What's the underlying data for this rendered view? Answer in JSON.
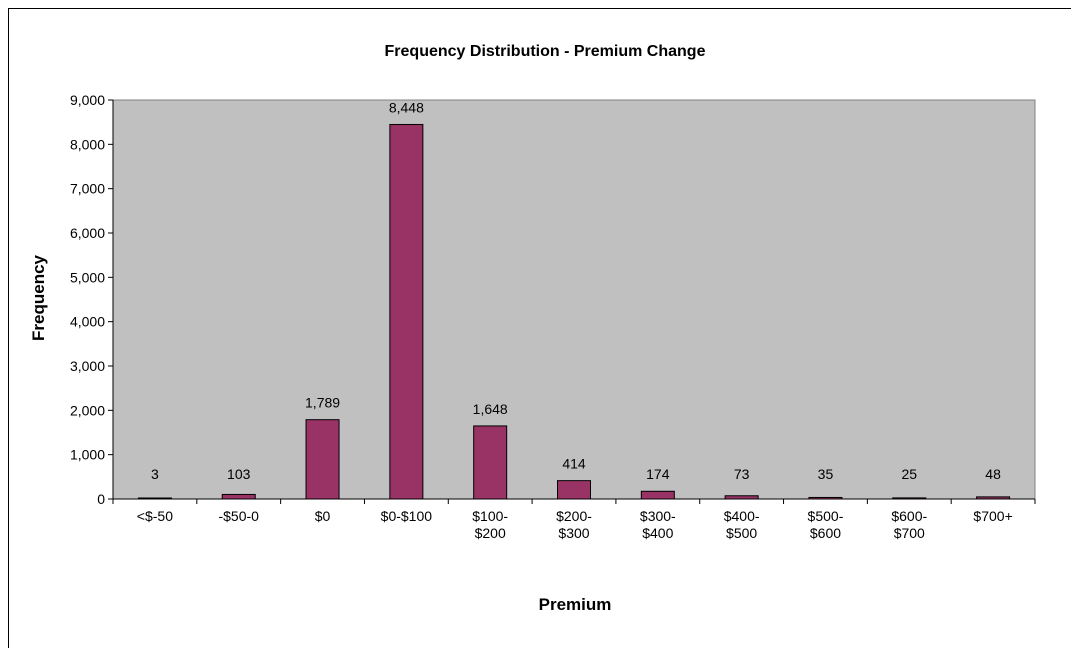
{
  "chart_data": {
    "type": "bar",
    "title": "Frequency Distribution - Premium Change",
    "xlabel": "Premium",
    "ylabel": "Frequency",
    "categories": [
      [
        "<$-50"
      ],
      [
        "-$50-0"
      ],
      [
        "$0"
      ],
      [
        "$0-$100"
      ],
      [
        "$100-",
        "$200"
      ],
      [
        "$200-",
        "$300"
      ],
      [
        "$300-",
        "$400"
      ],
      [
        "$400-",
        "$500"
      ],
      [
        "$500-",
        "$600"
      ],
      [
        "$600-",
        "$700"
      ],
      [
        "$700+"
      ]
    ],
    "values": [
      3,
      103,
      1789,
      8448,
      1648,
      414,
      174,
      73,
      35,
      25,
      48
    ],
    "data_labels": [
      "3",
      "103",
      "1,789",
      "8,448",
      "1,648",
      "414",
      "174",
      "73",
      "35",
      "25",
      "48"
    ],
    "ylim": [
      0,
      9000
    ],
    "yticks": [
      0,
      1000,
      2000,
      3000,
      4000,
      5000,
      6000,
      7000,
      8000,
      9000
    ],
    "ytick_labels": [
      "0",
      "1,000",
      "2,000",
      "3,000",
      "4,000",
      "5,000",
      "6,000",
      "7,000",
      "8,000",
      "9,000"
    ],
    "grid": false,
    "legend": "none",
    "colors": {
      "bar_fill": "#993366",
      "bar_stroke": "#000000",
      "plot_background": "#c0c0c0"
    }
  }
}
